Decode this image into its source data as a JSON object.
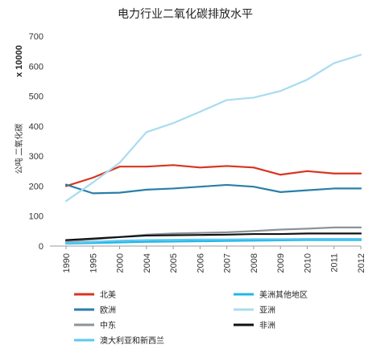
{
  "chart_data": {
    "type": "line",
    "title": "电力行业二氧化碳排放水平",
    "ylabel": "公吨 二氧化碳",
    "yunit": "x 10000",
    "categories": [
      "1990",
      "1995",
      "2000",
      "2004",
      "2005",
      "2006",
      "2007",
      "2008",
      "2009",
      "2010",
      "2011",
      "2012"
    ],
    "ylim": [
      0,
      700
    ],
    "yticks": [
      0,
      100,
      200,
      300,
      400,
      500,
      600,
      700
    ],
    "grid": false,
    "legend_position": "bottom",
    "series": [
      {
        "name": "北美",
        "color": "#d9341f",
        "values": [
          200,
          228,
          265,
          265,
          270,
          262,
          267,
          262,
          238,
          250,
          242,
          242
        ]
      },
      {
        "name": "美洲其他地区",
        "color": "#1fb7e6",
        "values": [
          8,
          10,
          12,
          14,
          15,
          16,
          17,
          18,
          19,
          20,
          20,
          20
        ]
      },
      {
        "name": "欧洲",
        "color": "#2a7fa7",
        "values": [
          205,
          176,
          178,
          188,
          192,
          198,
          204,
          198,
          180,
          186,
          192,
          192
        ]
      },
      {
        "name": "亚洲",
        "color": "#a8dcf0",
        "values": [
          150,
          212,
          278,
          380,
          410,
          448,
          487,
          495,
          517,
          555,
          610,
          638
        ]
      },
      {
        "name": "中东",
        "color": "#8c9499",
        "values": [
          15,
          22,
          30,
          38,
          42,
          44,
          46,
          50,
          55,
          58,
          62,
          62
        ]
      },
      {
        "name": "非洲",
        "color": "#111111",
        "values": [
          20,
          25,
          30,
          35,
          36,
          37,
          38,
          40,
          40,
          42,
          42,
          42
        ]
      },
      {
        "name": "澳大利亚和新西兰",
        "color": "#5cc8f0",
        "values": [
          10,
          14,
          18,
          20,
          21,
          22,
          22,
          23,
          23,
          24,
          24,
          24
        ]
      }
    ]
  }
}
